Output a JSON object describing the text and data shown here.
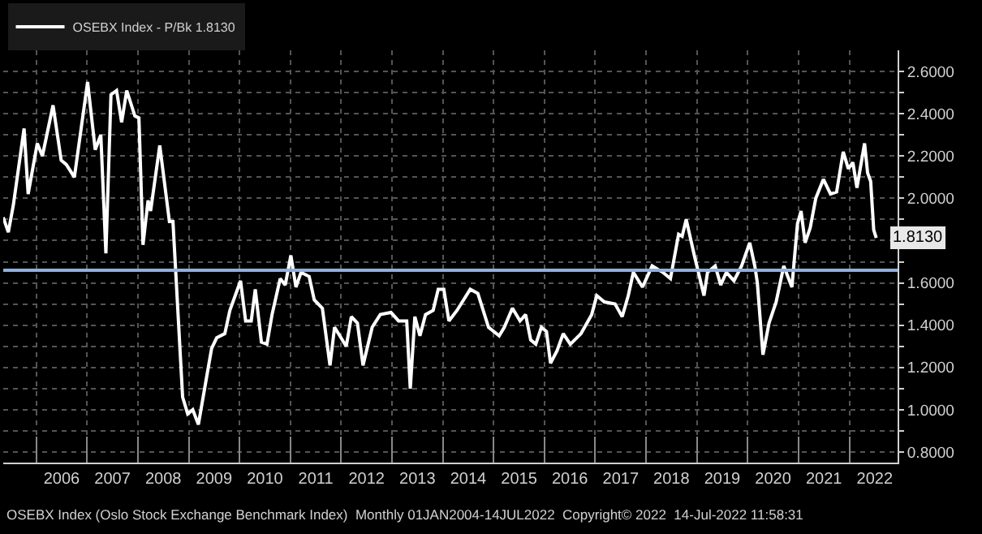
{
  "chart_data": {
    "type": "line",
    "x": [
      2005.35,
      2005.45,
      2005.55,
      2005.76,
      2005.84,
      2006.02,
      2006.12,
      2006.33,
      2006.49,
      2006.59,
      2006.75,
      2007.01,
      2007.16,
      2007.27,
      2007.37,
      2007.47,
      2007.58,
      2007.68,
      2007.78,
      2007.94,
      2008.02,
      2008.1,
      2008.2,
      2008.25,
      2008.43,
      2008.62,
      2008.69,
      2008.88,
      2008.98,
      2009.08,
      2009.19,
      2009.45,
      2009.55,
      2009.71,
      2009.81,
      2010.02,
      2010.12,
      2010.23,
      2010.31,
      2010.43,
      2010.54,
      2010.64,
      2010.8,
      2010.9,
      2011.01,
      2011.11,
      2011.21,
      2011.37,
      2011.47,
      2011.63,
      2011.78,
      2011.87,
      2012.1,
      2012.2,
      2012.32,
      2012.43,
      2012.61,
      2012.77,
      2012.98,
      2013.13,
      2013.29,
      2013.36,
      2013.45,
      2013.55,
      2013.66,
      2013.81,
      2013.91,
      2014.02,
      2014.12,
      2014.28,
      2014.54,
      2014.69,
      2014.9,
      2015.11,
      2015.21,
      2015.37,
      2015.52,
      2015.63,
      2015.73,
      2015.83,
      2015.94,
      2016.04,
      2016.12,
      2016.25,
      2016.37,
      2016.51,
      2016.72,
      2016.93,
      2017.03,
      2017.18,
      2017.39,
      2017.53,
      2017.65,
      2017.75,
      2017.93,
      2018.12,
      2018.33,
      2018.48,
      2018.64,
      2018.71,
      2018.79,
      2018.95,
      2019.14,
      2019.21,
      2019.36,
      2019.47,
      2019.58,
      2019.73,
      2019.88,
      2020.04,
      2020.14,
      2020.19,
      2020.3,
      2020.42,
      2020.56,
      2020.71,
      2020.87,
      2020.98,
      2021.05,
      2021.13,
      2021.23,
      2021.34,
      2021.49,
      2021.63,
      2021.75,
      2021.88,
      2021.98,
      2022.07,
      2022.15,
      2022.3,
      2022.36,
      2022.42,
      2022.48,
      2022.53
    ],
    "series": [
      {
        "name": "OSEBX Index - P/Bk 1.8130",
        "color": "#ffffff",
        "values": [
          1.91,
          1.84,
          1.97,
          2.33,
          2.02,
          2.26,
          2.2,
          2.44,
          2.18,
          2.16,
          2.1,
          2.55,
          2.23,
          2.3,
          1.74,
          2.49,
          2.51,
          2.36,
          2.51,
          2.39,
          2.38,
          1.78,
          1.99,
          1.94,
          2.25,
          1.89,
          1.89,
          1.06,
          0.98,
          1.0,
          0.93,
          1.29,
          1.34,
          1.36,
          1.47,
          1.61,
          1.42,
          1.42,
          1.57,
          1.32,
          1.31,
          1.45,
          1.62,
          1.59,
          1.73,
          1.58,
          1.65,
          1.63,
          1.52,
          1.48,
          1.21,
          1.39,
          1.3,
          1.44,
          1.41,
          1.21,
          1.39,
          1.45,
          1.46,
          1.42,
          1.42,
          1.1,
          1.44,
          1.35,
          1.45,
          1.47,
          1.57,
          1.57,
          1.42,
          1.47,
          1.57,
          1.55,
          1.39,
          1.35,
          1.39,
          1.48,
          1.42,
          1.45,
          1.33,
          1.31,
          1.39,
          1.37,
          1.22,
          1.28,
          1.36,
          1.31,
          1.36,
          1.45,
          1.54,
          1.51,
          1.5,
          1.44,
          1.54,
          1.65,
          1.58,
          1.68,
          1.65,
          1.62,
          1.83,
          1.82,
          1.9,
          1.73,
          1.54,
          1.65,
          1.68,
          1.59,
          1.65,
          1.61,
          1.68,
          1.79,
          1.68,
          1.6,
          1.26,
          1.41,
          1.51,
          1.68,
          1.58,
          1.88,
          1.94,
          1.79,
          1.86,
          2.0,
          2.09,
          2.02,
          2.03,
          2.22,
          2.14,
          2.17,
          2.05,
          2.26,
          2.12,
          2.08,
          1.85,
          1.813
        ]
      }
    ],
    "xlim": [
      2005.35,
      2022.95
    ],
    "xticks": [
      {
        "value": 2006.5,
        "label": "2006"
      },
      {
        "value": 2007.5,
        "label": "2007"
      },
      {
        "value": 2008.5,
        "label": "2008"
      },
      {
        "value": 2009.5,
        "label": "2009"
      },
      {
        "value": 2010.5,
        "label": "2010"
      },
      {
        "value": 2011.5,
        "label": "2011"
      },
      {
        "value": 2012.5,
        "label": "2012"
      },
      {
        "value": 2013.5,
        "label": "2013"
      },
      {
        "value": 2014.5,
        "label": "2014"
      },
      {
        "value": 2015.5,
        "label": "2015"
      },
      {
        "value": 2016.5,
        "label": "2016"
      },
      {
        "value": 2017.5,
        "label": "2017"
      },
      {
        "value": 2018.5,
        "label": "2018"
      },
      {
        "value": 2019.5,
        "label": "2019"
      },
      {
        "value": 2020.5,
        "label": "2020"
      },
      {
        "value": 2021.5,
        "label": "2021"
      },
      {
        "value": 2022.5,
        "label": "2022"
      }
    ],
    "ylim": [
      0.75,
      2.7
    ],
    "yticks": [
      {
        "value": 0.8,
        "label": "0.8000"
      },
      {
        "value": 0.9,
        "label": null
      },
      {
        "value": 1.0,
        "label": "1.0000"
      },
      {
        "value": 1.1,
        "label": null
      },
      {
        "value": 1.2,
        "label": "1.2000"
      },
      {
        "value": 1.3,
        "label": null
      },
      {
        "value": 1.4,
        "label": "1.4000"
      },
      {
        "value": 1.5,
        "label": null
      },
      {
        "value": 1.6,
        "label": "1.6000"
      },
      {
        "value": 1.7,
        "label": null
      },
      {
        "value": 1.8,
        "label": null
      },
      {
        "value": 1.9,
        "label": null
      },
      {
        "value": 2.0,
        "label": "2.0000"
      },
      {
        "value": 2.1,
        "label": null
      },
      {
        "value": 2.2,
        "label": "2.2000"
      },
      {
        "value": 2.3,
        "label": null
      },
      {
        "value": 2.4,
        "label": "2.4000"
      },
      {
        "value": 2.5,
        "label": null
      },
      {
        "value": 2.6,
        "label": "2.6000"
      }
    ],
    "ref_lines": [
      {
        "axis": "y",
        "value": 1.66,
        "color": "#8fb0e0"
      }
    ],
    "annotations": [
      {
        "text": "1.8130",
        "x": 2022.53,
        "y": 1.813
      },
      "OSEBX Index (Oslo Stock Exchange Benchmark Index)  Monthly 01JAN2004-14JUL2022  Copyright© 2022  14-Jul-2022 11:58:31"
    ],
    "grid": true,
    "legend": "top left",
    "marker": "none",
    "line_style": "solid"
  }
}
